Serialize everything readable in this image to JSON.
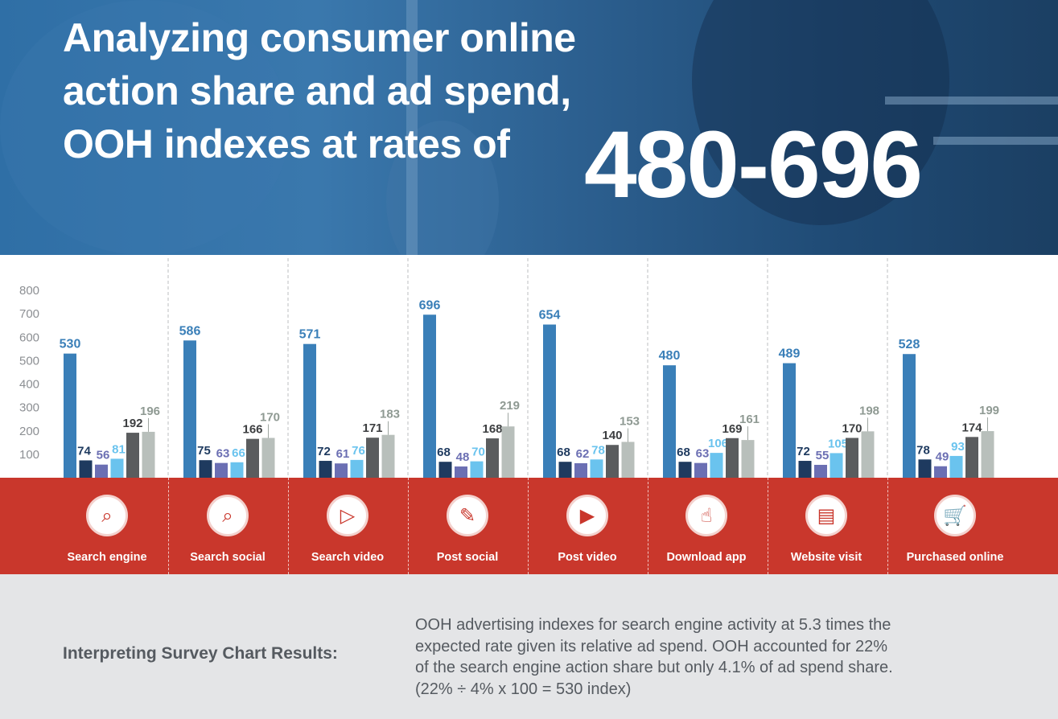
{
  "header": {
    "title_lines": [
      "Analyzing consumer online",
      "action share and ad spend,",
      "OOH indexes at rates of"
    ],
    "big_number": "480-696"
  },
  "chart_data": {
    "type": "bar",
    "categories": [
      "Search engine",
      "Search social",
      "Search video",
      "Post social",
      "Post video",
      "Download app",
      "Website visit",
      "Purchased online"
    ],
    "series": [
      {
        "color": "#3a7fb8",
        "values": [
          530,
          586,
          571,
          696,
          654,
          480,
          489,
          528
        ]
      },
      {
        "color": "#1e3a5f",
        "values": [
          74,
          75,
          72,
          68,
          68,
          68,
          72,
          78
        ]
      },
      {
        "color": "#6b6fb3",
        "values": [
          56,
          63,
          61,
          48,
          62,
          63,
          55,
          49
        ]
      },
      {
        "color": "#6ac3ee",
        "values": [
          81,
          66,
          76,
          70,
          78,
          106,
          105,
          93
        ]
      },
      {
        "color": "#5a5c5e",
        "values": [
          192,
          166,
          171,
          168,
          140,
          169,
          170,
          174
        ]
      },
      {
        "color": "#b8bfbb",
        "values": [
          196,
          170,
          183,
          219,
          153,
          161,
          198,
          199
        ]
      }
    ],
    "label_colors": [
      "#3a7fb8",
      "#1e3a5f",
      "#6b6fb3",
      "#6ac3ee",
      "#3d3f41",
      "#8f9a93"
    ],
    "yticks": [
      100,
      200,
      300,
      400,
      500,
      600,
      700,
      800
    ],
    "ylim": [
      0,
      800
    ]
  },
  "icons": [
    "search-engine-icon",
    "search-social-icon",
    "search-video-icon",
    "post-social-icon",
    "post-video-icon",
    "download-app-icon",
    "website-visit-icon",
    "purchased-online-icon"
  ],
  "colors": {
    "band": "#c9372c",
    "footer_bg": "#e4e5e7",
    "footer_text": "#555a60"
  },
  "footer": {
    "title": "Interpreting Survey Chart Results:",
    "lines": [
      "OOH advertising indexes for search engine activity at 5.3  times the",
      "expected rate given its relative ad spend. OOH accounted for 22%",
      "of the search engine action share but only 4.1% of ad spend share.",
      "(22% ÷ 4% x 100 = 530 index)"
    ]
  }
}
